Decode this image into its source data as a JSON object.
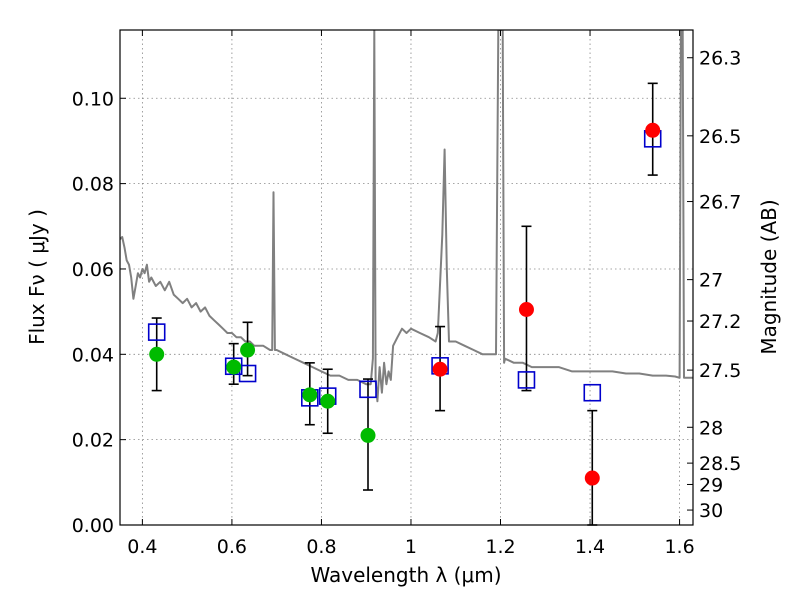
{
  "chart_data": {
    "type": "scatter",
    "title": "",
    "xlabel": "Wavelength  λ (μm)",
    "ylabel": "Flux  Fν  ( μJy )",
    "y2label": "Magnitude (AB)",
    "xlim": [
      0.35,
      1.63
    ],
    "ylim": [
      0.0,
      0.116
    ],
    "grid": true,
    "x_ticks": [
      0.4,
      0.6,
      0.8,
      1.0,
      1.2,
      1.4,
      1.6
    ],
    "x_tick_labels": [
      "0.4",
      "0.6",
      "0.8",
      "1",
      "1.2",
      "1.4",
      "1.6"
    ],
    "y_ticks": [
      0.0,
      0.02,
      0.04,
      0.06,
      0.08,
      0.1
    ],
    "y_tick_labels": [
      "0.00",
      "0.02",
      "0.04",
      "0.06",
      "0.08",
      "0.10"
    ],
    "y2_ticks": [
      {
        "label": "26.3",
        "flux": 0.1095
      },
      {
        "label": "26.5",
        "flux": 0.0912
      },
      {
        "label": "26.7",
        "flux": 0.0758
      },
      {
        "label": "27",
        "flux": 0.0575
      },
      {
        "label": "27.2",
        "flux": 0.0478
      },
      {
        "label": "27.5",
        "flux": 0.0363
      },
      {
        "label": "28",
        "flux": 0.0229
      },
      {
        "label": "28.5",
        "flux": 0.0145
      },
      {
        "label": "29",
        "flux": 0.0095
      },
      {
        "label": "30",
        "flux": 0.0035
      }
    ],
    "colors": {
      "model": "#808080",
      "hst": "#00bb00",
      "nir": "#ff0000",
      "model_phot": "#0000cc",
      "errorbar": "#000000",
      "grid": "#888888"
    },
    "series": [
      {
        "type": "line",
        "points": [
          [
            0.35,
            0.067
          ],
          [
            0.355,
            0.0675
          ],
          [
            0.36,
            0.065
          ],
          [
            0.365,
            0.062
          ],
          [
            0.37,
            0.061
          ],
          [
            0.375,
            0.058
          ],
          [
            0.38,
            0.053
          ],
          [
            0.385,
            0.056
          ],
          [
            0.39,
            0.059
          ],
          [
            0.395,
            0.058
          ],
          [
            0.4,
            0.06
          ],
          [
            0.405,
            0.059
          ],
          [
            0.41,
            0.061
          ],
          [
            0.415,
            0.057
          ],
          [
            0.42,
            0.058
          ],
          [
            0.43,
            0.056
          ],
          [
            0.44,
            0.057
          ],
          [
            0.45,
            0.055
          ],
          [
            0.46,
            0.057
          ],
          [
            0.47,
            0.054
          ],
          [
            0.48,
            0.053
          ],
          [
            0.49,
            0.052
          ],
          [
            0.5,
            0.053
          ],
          [
            0.51,
            0.051
          ],
          [
            0.52,
            0.052
          ],
          [
            0.53,
            0.05
          ],
          [
            0.54,
            0.051
          ],
          [
            0.55,
            0.049
          ],
          [
            0.56,
            0.048
          ],
          [
            0.57,
            0.047
          ],
          [
            0.58,
            0.046
          ],
          [
            0.59,
            0.045
          ],
          [
            0.6,
            0.045
          ],
          [
            0.61,
            0.044
          ],
          [
            0.62,
            0.044
          ],
          [
            0.63,
            0.043
          ],
          [
            0.64,
            0.043
          ],
          [
            0.65,
            0.042
          ],
          [
            0.66,
            0.042
          ],
          [
            0.67,
            0.042
          ],
          [
            0.685,
            0.041
          ],
          [
            0.69,
            0.041
          ],
          [
            0.693,
            0.078
          ],
          [
            0.696,
            0.041
          ],
          [
            0.7,
            0.041
          ],
          [
            0.72,
            0.04
          ],
          [
            0.74,
            0.039
          ],
          [
            0.76,
            0.038
          ],
          [
            0.78,
            0.037
          ],
          [
            0.8,
            0.036
          ],
          [
            0.82,
            0.035
          ],
          [
            0.84,
            0.035
          ],
          [
            0.86,
            0.034
          ],
          [
            0.88,
            0.034
          ],
          [
            0.9,
            0.033
          ],
          [
            0.91,
            0.033
          ],
          [
            0.915,
            0.039
          ],
          [
            0.918,
            0.118
          ],
          [
            0.921,
            0.034
          ],
          [
            0.925,
            0.029
          ],
          [
            0.93,
            0.037
          ],
          [
            0.935,
            0.031
          ],
          [
            0.94,
            0.038
          ],
          [
            0.945,
            0.033
          ],
          [
            0.95,
            0.036
          ],
          [
            0.955,
            0.034
          ],
          [
            0.96,
            0.042
          ],
          [
            0.97,
            0.044
          ],
          [
            0.98,
            0.046
          ],
          [
            0.99,
            0.045
          ],
          [
            1.0,
            0.046
          ],
          [
            1.02,
            0.045
          ],
          [
            1.04,
            0.044
          ],
          [
            1.055,
            0.043
          ],
          [
            1.06,
            0.045
          ],
          [
            1.07,
            0.068
          ],
          [
            1.075,
            0.088
          ],
          [
            1.08,
            0.06
          ],
          [
            1.085,
            0.043
          ],
          [
            1.1,
            0.043
          ],
          [
            1.12,
            0.042
          ],
          [
            1.14,
            0.041
          ],
          [
            1.16,
            0.04
          ],
          [
            1.18,
            0.04
          ],
          [
            1.19,
            0.04
          ],
          [
            1.195,
            0.118
          ],
          [
            1.2,
            0.118
          ],
          [
            1.205,
            0.118
          ],
          [
            1.208,
            0.038
          ],
          [
            1.21,
            0.039
          ],
          [
            1.23,
            0.038
          ],
          [
            1.25,
            0.038
          ],
          [
            1.27,
            0.037
          ],
          [
            1.3,
            0.037
          ],
          [
            1.33,
            0.037
          ],
          [
            1.36,
            0.036
          ],
          [
            1.39,
            0.036
          ],
          [
            1.42,
            0.036
          ],
          [
            1.45,
            0.036
          ],
          [
            1.48,
            0.0355
          ],
          [
            1.51,
            0.0355
          ],
          [
            1.54,
            0.035
          ],
          [
            1.57,
            0.035
          ],
          [
            1.59,
            0.0348
          ],
          [
            1.6,
            0.0345
          ],
          [
            1.603,
            0.118
          ],
          [
            1.607,
            0.118
          ],
          [
            1.61,
            0.0345
          ],
          [
            1.63,
            0.0345
          ]
        ]
      },
      {
        "type": "points",
        "marker": "circle",
        "x": [
          0.432,
          0.604,
          0.635,
          0.774,
          0.814,
          0.904
        ],
        "y": [
          0.04,
          0.037,
          0.041,
          0.0305,
          0.029,
          0.021
        ]
      },
      {
        "type": "points",
        "marker": "circle",
        "x": [
          1.065,
          1.258,
          1.405,
          1.54
        ],
        "y": [
          0.0365,
          0.0505,
          0.011,
          0.0925
        ]
      },
      {
        "type": "points",
        "marker": "open-square",
        "x": [
          0.432,
          0.604,
          0.635,
          0.774,
          0.814,
          0.904,
          1.065,
          1.258,
          1.405,
          1.54
        ],
        "y": [
          0.0452,
          0.0372,
          0.0355,
          0.0298,
          0.0302,
          0.0318,
          0.0373,
          0.034,
          0.031,
          0.0905
        ]
      }
    ],
    "error_bars": [
      {
        "x": 0.432,
        "low": 0.0315,
        "high": 0.0485
      },
      {
        "x": 0.604,
        "low": 0.033,
        "high": 0.0425
      },
      {
        "x": 0.635,
        "low": 0.035,
        "high": 0.0475
      },
      {
        "x": 0.774,
        "low": 0.0235,
        "high": 0.038
      },
      {
        "x": 0.814,
        "low": 0.0215,
        "high": 0.0365
      },
      {
        "x": 0.904,
        "low": 0.0082,
        "high": 0.0342
      },
      {
        "x": 1.065,
        "low": 0.0268,
        "high": 0.0465
      },
      {
        "x": 1.258,
        "low": 0.0315,
        "high": 0.07
      },
      {
        "x": 1.405,
        "low": 0.0,
        "high": 0.0268
      },
      {
        "x": 1.54,
        "low": 0.082,
        "high": 0.1035
      }
    ]
  }
}
